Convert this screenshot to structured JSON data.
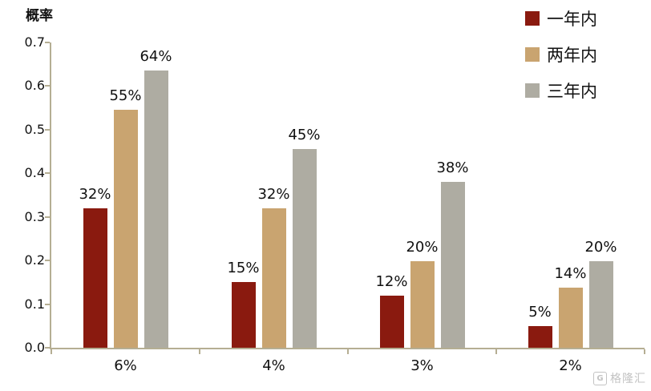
{
  "chart_data": {
    "type": "bar",
    "title": "",
    "ylabel": "概率",
    "xlabel": "",
    "categories": [
      "6%",
      "4%",
      "3%",
      "2%"
    ],
    "series": [
      {
        "name": "一年内",
        "color": "#8a1a0f",
        "values": [
          0.32,
          0.15,
          0.12,
          0.05
        ],
        "labels": [
          "32%",
          "15%",
          "12%",
          "5%"
        ]
      },
      {
        "name": "两年内",
        "color": "#c9a470",
        "values": [
          0.545,
          0.32,
          0.198,
          0.138
        ],
        "labels": [
          "55%",
          "32%",
          "20%",
          "14%"
        ]
      },
      {
        "name": "三年内",
        "color": "#aeaca2",
        "values": [
          0.635,
          0.455,
          0.38,
          0.198
        ],
        "labels": [
          "64%",
          "45%",
          "38%",
          "20%"
        ]
      }
    ],
    "ylim": [
      0,
      0.7
    ],
    "yticks": [
      0.0,
      0.1,
      0.2,
      0.3,
      0.4,
      0.5,
      0.6,
      0.7
    ],
    "legend_position": "top-right",
    "grid": false,
    "axis_color": "#b5ae93"
  },
  "watermark": {
    "text": "格隆汇",
    "icon": "gelonghui-logo"
  }
}
